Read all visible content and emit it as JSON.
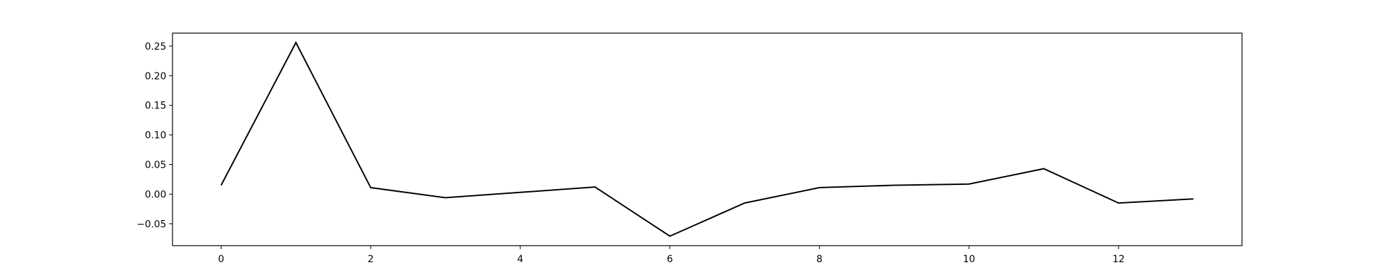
{
  "chart_data": {
    "type": "line",
    "title": "",
    "xlabel": "",
    "ylabel": "",
    "x": [
      0,
      1,
      2,
      3,
      4,
      5,
      6,
      7,
      8,
      9,
      10,
      11,
      12,
      13
    ],
    "series": [
      {
        "values": [
          0.015,
          0.256,
          0.011,
          -0.006,
          0.003,
          0.012,
          -0.071,
          -0.015,
          0.011,
          0.015,
          0.017,
          0.043,
          -0.015,
          -0.008
        ],
        "color": "#000000"
      }
    ],
    "xlim": [
      -0.65,
      13.65
    ],
    "ylim": [
      -0.087,
      0.272
    ],
    "xticks": [
      0,
      2,
      4,
      6,
      8,
      10,
      12
    ],
    "xtick_labels": [
      "0",
      "2",
      "4",
      "6",
      "8",
      "10",
      "12"
    ],
    "yticks": [
      -0.05,
      0.0,
      0.05,
      0.1,
      0.15,
      0.2,
      0.25
    ],
    "ytick_labels": [
      "−0.05",
      "0.00",
      "0.05",
      "0.10",
      "0.15",
      "0.20",
      "0.25"
    ],
    "grid": false,
    "legend": "none"
  }
}
